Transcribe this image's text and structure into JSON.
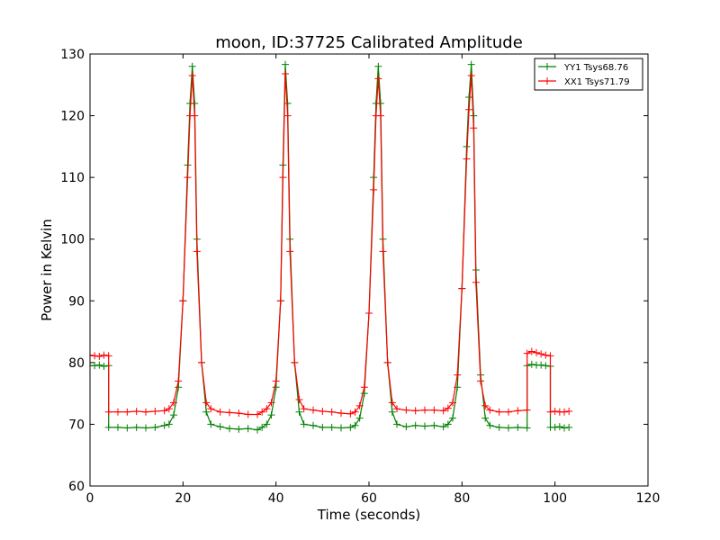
{
  "chart_data": {
    "type": "line",
    "title": "moon, ID:37725 Calibrated Amplitude",
    "xlabel": "Time (seconds)",
    "ylabel": "Power in Kelvin",
    "xlim": [
      0,
      120
    ],
    "ylim": [
      60,
      130
    ],
    "xticks": [
      0,
      20,
      40,
      60,
      80,
      100,
      120
    ],
    "yticks": [
      60,
      70,
      80,
      90,
      100,
      110,
      120,
      130
    ],
    "grid": false,
    "legend_position": "top-right",
    "marker": "plus",
    "series": [
      {
        "name": "YY1 Tsys68.76",
        "color": "#008000",
        "segments": [
          {
            "x": [
              0,
              1,
              2,
              3,
              4
            ],
            "y": [
              79.5,
              79.5,
              79.6,
              79.4,
              79.5
            ]
          },
          {
            "x": [
              4,
              6,
              8,
              10,
              12,
              14,
              16,
              17,
              18,
              19,
              20,
              21,
              21.5,
              22,
              22.5,
              23,
              24,
              25,
              26,
              28,
              30,
              32,
              34,
              36,
              37,
              38,
              39,
              40,
              41,
              41.5,
              42,
              42.5,
              43,
              44,
              45,
              46,
              48,
              50,
              52,
              54,
              56,
              57,
              58,
              59,
              60,
              61,
              61.5,
              62,
              62.5,
              63,
              64,
              65,
              66,
              68,
              70,
              72,
              74,
              76,
              77,
              78,
              79,
              80,
              81,
              81.5,
              82,
              82.5,
              83,
              84,
              85,
              86,
              88,
              90,
              92,
              94
            ],
            "y": [
              69.5,
              69.5,
              69.4,
              69.5,
              69.4,
              69.5,
              69.8,
              70.0,
              71.5,
              76.0,
              90.0,
              112.0,
              122.0,
              128.0,
              122.0,
              100.0,
              80.0,
              72.0,
              70.0,
              69.6,
              69.3,
              69.2,
              69.3,
              69.1,
              69.5,
              70.0,
              71.5,
              76.0,
              90.0,
              112.0,
              128.3,
              122.0,
              100.0,
              80.0,
              72.0,
              70.0,
              69.8,
              69.5,
              69.5,
              69.4,
              69.5,
              69.8,
              71.0,
              75.0,
              88.0,
              110.0,
              122.0,
              128.0,
              122.0,
              100.0,
              80.0,
              72.0,
              70.0,
              69.6,
              69.8,
              69.7,
              69.8,
              69.6,
              70.0,
              71.0,
              76.0,
              92.0,
              115.0,
              123.0,
              128.3,
              120.0,
              95.0,
              78.0,
              71.0,
              69.8,
              69.5,
              69.4,
              69.5,
              69.4
            ]
          },
          {
            "x": [
              94,
              95,
              96,
              97,
              98,
              99
            ],
            "y": [
              79.5,
              79.7,
              79.6,
              79.6,
              79.5,
              79.4
            ]
          },
          {
            "x": [
              99,
              100,
              101,
              102,
              103
            ],
            "y": [
              69.5,
              69.5,
              69.6,
              69.4,
              69.5
            ]
          }
        ]
      },
      {
        "name": "XX1 Tsys71.79",
        "color": "#ff0000",
        "segments": [
          {
            "x": [
              0,
              1,
              2,
              3,
              4
            ],
            "y": [
              81.2,
              81.1,
              81.0,
              81.2,
              81.1
            ]
          },
          {
            "x": [
              4,
              6,
              8,
              10,
              12,
              14,
              16,
              17,
              18,
              19,
              20,
              21,
              21.5,
              22,
              22.5,
              23,
              24,
              25,
              26,
              28,
              30,
              32,
              34,
              36,
              37,
              38,
              39,
              40,
              41,
              41.5,
              42,
              42.5,
              43,
              44,
              45,
              46,
              48,
              50,
              52,
              54,
              56,
              57,
              58,
              59,
              60,
              61,
              61.5,
              62,
              62.5,
              63,
              64,
              65,
              66,
              68,
              70,
              72,
              74,
              76,
              77,
              78,
              79,
              80,
              81,
              81.5,
              82,
              82.5,
              83,
              84,
              85,
              86,
              88,
              90,
              92,
              94
            ],
            "y": [
              72.0,
              72.0,
              72.0,
              72.1,
              72.0,
              72.1,
              72.2,
              72.5,
              73.5,
              77.0,
              90.0,
              110.0,
              120.0,
              126.5,
              120.0,
              98.0,
              80.0,
              73.5,
              72.5,
              72.0,
              71.9,
              71.8,
              71.6,
              71.6,
              72.0,
              72.5,
              73.5,
              77.0,
              90.0,
              110.0,
              126.8,
              120.0,
              98.0,
              80.0,
              74.0,
              72.5,
              72.3,
              72.1,
              72.0,
              71.8,
              71.7,
              72.0,
              73.0,
              76.0,
              88.0,
              108.0,
              120.0,
              126.0,
              120.0,
              98.0,
              80.0,
              73.5,
              72.5,
              72.3,
              72.2,
              72.3,
              72.3,
              72.2,
              72.6,
              73.5,
              78.0,
              92.0,
              113.0,
              121.0,
              126.5,
              118.0,
              93.0,
              77.0,
              73.0,
              72.3,
              72.0,
              72.0,
              72.2,
              72.3
            ]
          },
          {
            "x": [
              94,
              95,
              96,
              97,
              98,
              99
            ],
            "y": [
              81.5,
              81.8,
              81.6,
              81.4,
              81.2,
              81.1
            ]
          },
          {
            "x": [
              99,
              100,
              101,
              102,
              103
            ],
            "y": [
              72.0,
              72.1,
              72.0,
              72.0,
              72.1
            ]
          }
        ]
      }
    ]
  }
}
